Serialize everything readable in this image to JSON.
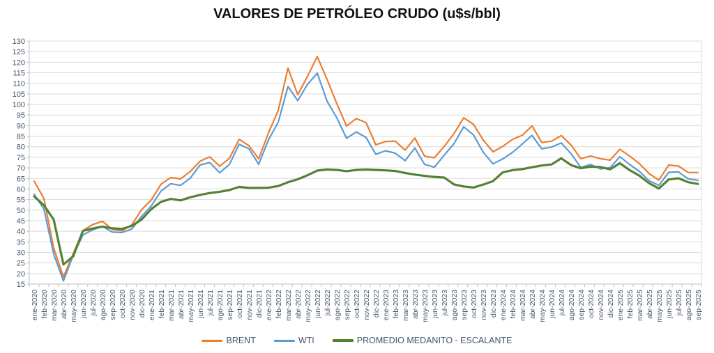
{
  "title": "VALORES DE PETRÓLEO CRUDO (u$s/bbl)",
  "legend": {
    "items": [
      "BRENT",
      "WTI",
      "PROMEDIO MEDANITO - ESCALANTE"
    ]
  },
  "axis_colors": {
    "grid": "#d9d9d9",
    "axis_line": "#bfbfbf",
    "tick_label": "#44546a"
  },
  "chart_data": {
    "type": "line",
    "title": "VALORES DE PETRÓLEO CRUDO (u$s/bbl)",
    "xlabel": "",
    "ylabel": "",
    "ylim": [
      15,
      130
    ],
    "ytick_step": 5,
    "yticks": [
      15,
      20,
      25,
      30,
      35,
      40,
      45,
      50,
      55,
      60,
      65,
      70,
      75,
      80,
      85,
      90,
      95,
      100,
      105,
      110,
      115,
      120,
      125,
      130
    ],
    "grid": true,
    "legend_position": "bottom",
    "categories": [
      "ene-2020",
      "feb-2020",
      "mar-2020",
      "abr-2020",
      "may-2020",
      "jun-2020",
      "jul-2020",
      "ago-2020",
      "sep-2020",
      "oct-2020",
      "nov-2020",
      "dic-2020",
      "ene-2021",
      "feb-2021",
      "mar-2021",
      "abr-2021",
      "may-2021",
      "jun-2021",
      "jul-2021",
      "ago-2021",
      "sep-2021",
      "oct-2021",
      "nov-2021",
      "dic-2021",
      "ene-2022",
      "feb-2022",
      "mar-2022",
      "abr-2022",
      "may-2022",
      "jun-2022",
      "jul-2022",
      "ago-2022",
      "sep-2022",
      "oct-2022",
      "nov-2022",
      "dic-2022",
      "ene-2023",
      "feb-2023",
      "mar-2023",
      "abr-2023",
      "may-2023",
      "jun-2023",
      "jul-2023",
      "ago-2023",
      "sep-2023",
      "oct-2023",
      "nov-2023",
      "dic-2023",
      "ene-2024",
      "feb-2024",
      "mar-2024",
      "abr-2024",
      "may-2024",
      "jun-2024",
      "jul-2024",
      "ago-2024",
      "sep-2024",
      "oct-2024",
      "nov-2024",
      "dic-2024",
      "ene-2025",
      "feb-2025",
      "mar-2025",
      "abr-2025",
      "may-2025",
      "jun-2025",
      "jul-2025",
      "ago-2025",
      "sep-2025"
    ],
    "series": [
      {
        "name": "BRENT",
        "color": "#ED7D31",
        "stroke_width": 2.2,
        "values": [
          63.7,
          55.5,
          32.0,
          18.4,
          29.4,
          40.3,
          43.2,
          44.7,
          40.9,
          40.2,
          43.0,
          50.2,
          54.8,
          62.3,
          65.4,
          64.8,
          68.3,
          73.2,
          75.2,
          70.8,
          74.5,
          83.5,
          80.5,
          74.3,
          86.5,
          97.1,
          117.2,
          104.6,
          113.3,
          122.7,
          111.9,
          100.4,
          89.8,
          93.3,
          91.4,
          80.9,
          82.5,
          82.6,
          78.4,
          84.1,
          75.5,
          74.8,
          80.1,
          86.2,
          93.7,
          90.6,
          83.2,
          77.6,
          80.1,
          83.5,
          85.4,
          89.9,
          82.0,
          82.6,
          85.3,
          80.8,
          74.3,
          75.6,
          74.3,
          73.7,
          78.8,
          75.6,
          72.0,
          67.3,
          64.2,
          71.3,
          70.9,
          67.8,
          67.8
        ]
      },
      {
        "name": "WTI",
        "color": "#5B9BD5",
        "stroke_width": 2.2,
        "values": [
          57.5,
          50.5,
          29.2,
          16.5,
          28.6,
          38.3,
          40.7,
          42.3,
          39.6,
          39.4,
          41.0,
          47.0,
          52.0,
          59.1,
          62.5,
          61.7,
          65.2,
          71.4,
          72.5,
          67.7,
          71.6,
          81.2,
          79.0,
          71.7,
          83.2,
          91.6,
          108.5,
          101.8,
          109.5,
          114.8,
          101.6,
          93.7,
          84.0,
          87.0,
          84.4,
          76.4,
          78.1,
          76.9,
          73.4,
          79.4,
          71.6,
          70.3,
          76.0,
          81.4,
          89.4,
          85.6,
          77.4,
          71.9,
          74.2,
          77.3,
          81.3,
          85.4,
          79.0,
          79.8,
          81.8,
          76.7,
          70.2,
          71.6,
          69.5,
          70.1,
          75.3,
          71.6,
          68.3,
          63.9,
          61.7,
          67.9,
          68.1,
          64.8,
          64.1
        ]
      },
      {
        "name": "PROMEDIO MEDANITO - ESCALANTE",
        "color": "#548235",
        "stroke_width": 3.2,
        "values": [
          56.5,
          52.3,
          45.5,
          24.3,
          28.1,
          40.2,
          41.3,
          42.2,
          41.4,
          41.1,
          42.5,
          45.5,
          50.5,
          53.9,
          55.3,
          54.6,
          56.1,
          57.2,
          58.1,
          58.7,
          59.5,
          61.0,
          60.5,
          60.5,
          60.6,
          61.4,
          63.2,
          64.6,
          66.5,
          68.7,
          69.2,
          69.0,
          68.4,
          69.0,
          69.2,
          69.0,
          68.8,
          68.5,
          67.6,
          66.8,
          66.2,
          65.7,
          65.4,
          62.2,
          61.2,
          60.7,
          62.1,
          63.7,
          67.9,
          68.9,
          69.4,
          70.3,
          71.1,
          71.6,
          74.5,
          71.3,
          69.8,
          70.6,
          70.4,
          69.3,
          72.2,
          68.9,
          66.3,
          62.7,
          60.2,
          64.5,
          65.1,
          63.2,
          62.4
        ]
      }
    ]
  }
}
